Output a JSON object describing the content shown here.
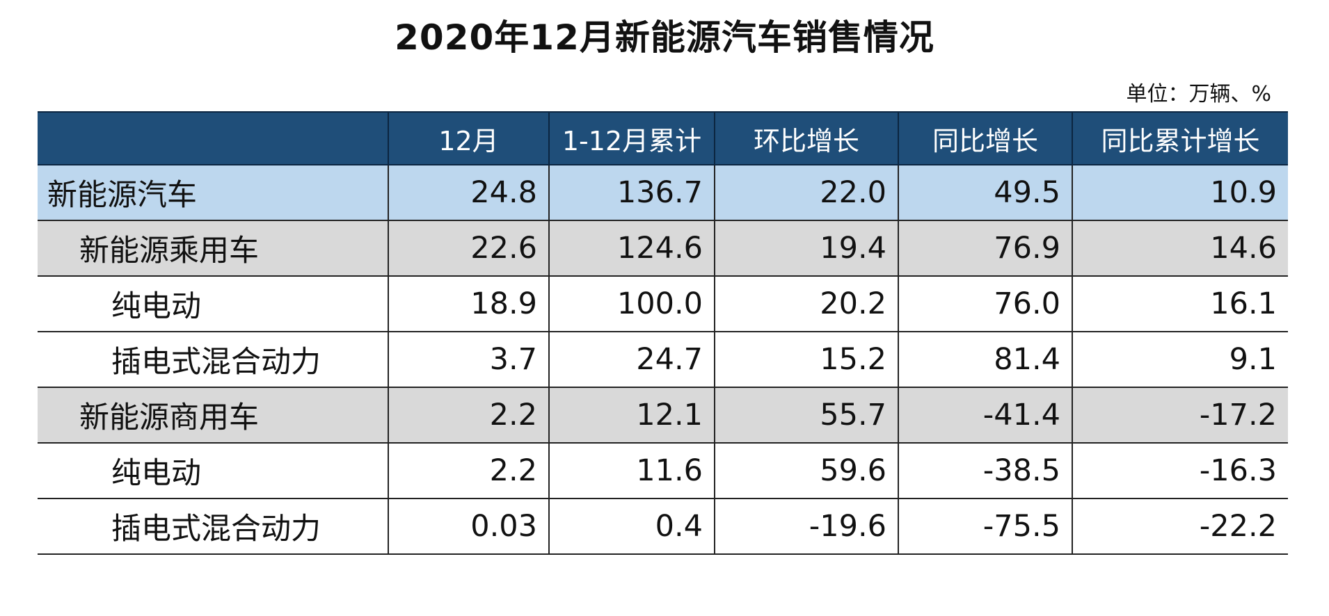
{
  "chart_data": {
    "type": "table",
    "title": "2020年12月新能源汽车销售情况",
    "unit_note": "单位：万辆、%",
    "columns": [
      "",
      "12月",
      "1-12月累计",
      "环比增长",
      "同比增长",
      "同比累计增长"
    ],
    "rows": [
      {
        "label": "新能源汽车",
        "level": 0,
        "style": "total",
        "values": [
          "24.8",
          "136.7",
          "22.0",
          "49.5",
          "10.9"
        ]
      },
      {
        "label": "新能源乘用车",
        "level": 1,
        "style": "sub",
        "values": [
          "22.6",
          "124.6",
          "19.4",
          "76.9",
          "14.6"
        ]
      },
      {
        "label": "纯电动",
        "level": 2,
        "style": "item",
        "values": [
          "18.9",
          "100.0",
          "20.2",
          "76.0",
          "16.1"
        ]
      },
      {
        "label": "插电式混合动力",
        "level": 2,
        "style": "item",
        "values": [
          "3.7",
          "24.7",
          "15.2",
          "81.4",
          "9.1"
        ]
      },
      {
        "label": "新能源商用车",
        "level": 1,
        "style": "sub",
        "values": [
          "2.2",
          "12.1",
          "55.7",
          "-41.4",
          "-17.2"
        ]
      },
      {
        "label": "纯电动",
        "level": 2,
        "style": "item",
        "values": [
          "2.2",
          "11.6",
          "59.6",
          "-38.5",
          "-16.3"
        ]
      },
      {
        "label": "插电式混合动力",
        "level": 2,
        "style": "item",
        "values": [
          "0.03",
          "0.4",
          "-19.6",
          "-75.5",
          "-22.2"
        ]
      }
    ],
    "colors": {
      "header": "#1f4e79",
      "total_row": "#bdd7ee",
      "sub_row": "#d9d9d9"
    }
  }
}
